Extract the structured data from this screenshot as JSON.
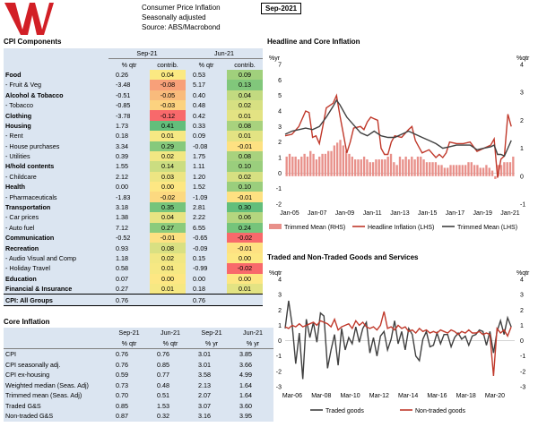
{
  "header": {
    "line1": "Consumer Price Inflation",
    "line2": "Seasonally adjusted",
    "line3": "Source: ABS/Macrobond",
    "date": "Sep-2021"
  },
  "cpi_components": {
    "title": "CPI Components",
    "col_periods": [
      "Sep-21",
      "Jun-21"
    ],
    "col_subs": [
      "% qtr",
      "contrib.",
      "% qtr",
      "contrib."
    ],
    "rows": [
      {
        "label": "Food",
        "bold": true,
        "v": [
          "0.26",
          "0.04",
          "0.53",
          "0.09"
        ],
        "c": [
          "#fbe982",
          "#a0d07c"
        ]
      },
      {
        "label": "- Fruit & Veg",
        "bold": false,
        "v": [
          "-3.48",
          "-0.08",
          "5.17",
          "0.13"
        ],
        "c": [
          "#f8a079",
          "#81c77b"
        ]
      },
      {
        "label": "Alcohol & Tobacco",
        "bold": true,
        "v": [
          "-0.51",
          "-0.05",
          "0.40",
          "0.04"
        ],
        "c": [
          "#f9bb7c",
          "#c2da80"
        ]
      },
      {
        "label": "- Tobacco",
        "bold": false,
        "v": [
          "-0.85",
          "-0.03",
          "0.48",
          "0.02"
        ],
        "c": [
          "#fcd27f",
          "#d7e082"
        ]
      },
      {
        "label": "Clothing",
        "bold": true,
        "v": [
          "-3.78",
          "-0.12",
          "0.42",
          "0.01"
        ],
        "c": [
          "#f8696b",
          "#e3e383"
        ]
      },
      {
        "label": "Housing",
        "bold": true,
        "v": [
          "1.73",
          "0.41",
          "0.33",
          "0.08"
        ],
        "c": [
          "#63be7b",
          "#a8d27e"
        ]
      },
      {
        "label": "- Rent",
        "bold": false,
        "v": [
          "0.18",
          "0.01",
          "0.09",
          "0.01"
        ],
        "c": [
          "#f6e883",
          "#e3e383"
        ]
      },
      {
        "label": "- House purchases",
        "bold": false,
        "v": [
          "3.34",
          "0.29",
          "-0.08",
          "-0.01"
        ],
        "c": [
          "#86c97c",
          "#fee182"
        ]
      },
      {
        "label": "- Utilities",
        "bold": false,
        "v": [
          "0.39",
          "0.02",
          "1.75",
          "0.08"
        ],
        "c": [
          "#f1e783",
          "#a8d27e"
        ]
      },
      {
        "label": "H/hold contents",
        "bold": true,
        "v": [
          "1.55",
          "0.14",
          "1.11",
          "0.10"
        ],
        "c": [
          "#cbdd81",
          "#9ace7d"
        ]
      },
      {
        "label": "- Childcare",
        "bold": false,
        "v": [
          "2.12",
          "0.03",
          "1.20",
          "0.02"
        ],
        "c": [
          "#ede583",
          "#d7e082"
        ]
      },
      {
        "label": "Health",
        "bold": true,
        "v": [
          "0.00",
          "0.00",
          "1.52",
          "0.10"
        ],
        "c": [
          "#fde783",
          "#9ace7d"
        ]
      },
      {
        "label": "- Pharmaceuticals",
        "bold": false,
        "v": [
          "-1.83",
          "-0.02",
          "-1.09",
          "-0.01"
        ],
        "c": [
          "#fcd980",
          "#fee182"
        ]
      },
      {
        "label": "Transportation",
        "bold": true,
        "v": [
          "3.18",
          "0.35",
          "2.81",
          "0.30"
        ],
        "c": [
          "#75c47b",
          "#63be7b"
        ]
      },
      {
        "label": "- Car prices",
        "bold": false,
        "v": [
          "1.38",
          "0.04",
          "2.22",
          "0.06"
        ],
        "c": [
          "#e8e482",
          "#b5d67f"
        ]
      },
      {
        "label": "- Auto fuel",
        "bold": false,
        "v": [
          "7.12",
          "0.27",
          "6.55",
          "0.24"
        ],
        "c": [
          "#8bcb7c",
          "#75c47b"
        ]
      },
      {
        "label": "Communication",
        "bold": true,
        "v": [
          "-0.52",
          "-0.01",
          "-0.65",
          "-0.02"
        ],
        "c": [
          "#fde182",
          "#f8696b"
        ]
      },
      {
        "label": "Recreation",
        "bold": true,
        "v": [
          "0.93",
          "0.08",
          "-0.09",
          "-0.01"
        ],
        "c": [
          "#d9e082",
          "#fee182"
        ]
      },
      {
        "label": "- Audio Visual and Comp",
        "bold": false,
        "v": [
          "1.18",
          "0.02",
          "0.15",
          "0.00"
        ],
        "c": [
          "#f1e783",
          "#fde783"
        ]
      },
      {
        "label": "- Holiday Travel",
        "bold": false,
        "v": [
          "0.58",
          "0.01",
          "-0.99",
          "-0.02"
        ],
        "c": [
          "#f6e883",
          "#f8696b"
        ]
      },
      {
        "label": "Education",
        "bold": true,
        "v": [
          "0.07",
          "0.00",
          "0.00",
          "0.00"
        ],
        "c": [
          "#fde783",
          "#fde783"
        ]
      },
      {
        "label": "Financial & Insurance",
        "bold": true,
        "v": [
          "0.27",
          "0.01",
          "0.18",
          "0.01"
        ],
        "c": [
          "#f6e883",
          "#e3e383"
        ]
      }
    ],
    "total": {
      "label": "CPI: All Groups",
      "v": [
        "0.76",
        "",
        "0.76",
        ""
      ]
    }
  },
  "core_inflation": {
    "title": "Core Inflation",
    "col_periods": [
      "Sep-21",
      "Jun-21",
      "Sep-21",
      "Jun-21"
    ],
    "col_subs": [
      "% qtr",
      "% qtr",
      "% yr",
      "% yr"
    ],
    "rows": [
      {
        "label": "CPI",
        "v": [
          "0.76",
          "0.76",
          "3.01",
          "3.85"
        ]
      },
      {
        "label": "CPI seasonally adj.",
        "v": [
          "0.76",
          "0.85",
          "3.01",
          "3.66"
        ]
      },
      {
        "label": "CPI ex-housing",
        "v": [
          "0.59",
          "0.77",
          "3.58",
          "4.99"
        ]
      },
      {
        "label": "Weighted median (Seas. Adj)",
        "v": [
          "0.73",
          "0.48",
          "2.13",
          "1.64"
        ]
      },
      {
        "label": "Trimmed mean (Seas. Adj)",
        "v": [
          "0.70",
          "0.51",
          "2.07",
          "1.64"
        ]
      },
      {
        "label": "Traded G&S",
        "v": [
          "0.85",
          "1.53",
          "3.07",
          "3.60"
        ]
      },
      {
        "label": "Non-traded G&S",
        "v": [
          "0.87",
          "0.32",
          "3.16",
          "3.95"
        ]
      }
    ]
  },
  "chart_data": [
    {
      "type": "line",
      "title": "Headline and Core Inflation",
      "left_axis_label": "%yr",
      "right_axis_label": "%qtr",
      "ylim_left": [
        -2,
        7
      ],
      "ylim_right": [
        -1,
        4
      ],
      "yticks_left": [
        "7",
        "6",
        "5",
        "4",
        "3",
        "2",
        "1",
        "0",
        "-1",
        "-2"
      ],
      "yticks_right": [
        "4",
        "3",
        "2",
        "1",
        "0",
        "-1"
      ],
      "xtick_labels": [
        "Jan-05",
        "Jan-07",
        "Jan-09",
        "Jan-11",
        "Jan-13",
        "Jan-15",
        "Jan-17",
        "Jan-19",
        "Jan-21"
      ],
      "x_start": 2005.0,
      "x_end": 2021.75,
      "series": [
        {
          "name": "Trimmed Mean (RHS)",
          "kind": "bar",
          "color": "#e8908a",
          "values": [
            0.7,
            0.8,
            0.7,
            0.7,
            0.6,
            0.7,
            0.8,
            0.7,
            0.9,
            0.8,
            0.6,
            0.7,
            0.8,
            0.8,
            0.9,
            0.9,
            1.1,
            1.2,
            1.3,
            1.1,
            0.9,
            0.8,
            0.7,
            0.6,
            0.6,
            0.6,
            0.7,
            0.6,
            0.5,
            0.5,
            0.6,
            0.6,
            0.6,
            0.6,
            0.7,
            0.8,
            0.5,
            0.4,
            0.7,
            0.6,
            0.7,
            0.6,
            0.7,
            0.6,
            0.7,
            0.7,
            0.6,
            0.5,
            0.5,
            0.5,
            0.5,
            0.4,
            0.4,
            0.3,
            0.3,
            0.4,
            0.4,
            0.4,
            0.4,
            0.4,
            0.4,
            0.5,
            0.5,
            0.4,
            0.4,
            0.3,
            0.3,
            0.4,
            0.3,
            0.2,
            -0.1,
            0.4,
            0.4,
            0.5,
            0.5,
            0.5,
            0.7
          ]
        },
        {
          "name": "Headline Inflation (LHS)",
          "kind": "line",
          "color": "#c0392b",
          "x": [
            2005.0,
            2005.5,
            2006.0,
            2006.5,
            2006.75,
            2007.0,
            2007.25,
            2007.5,
            2007.75,
            2008.0,
            2008.5,
            2008.75,
            2009.0,
            2009.25,
            2009.5,
            2009.75,
            2010.0,
            2010.5,
            2010.75,
            2011.0,
            2011.25,
            2011.5,
            2011.75,
            2012.0,
            2012.25,
            2012.5,
            2012.75,
            2013.0,
            2013.5,
            2014.0,
            2014.25,
            2014.5,
            2014.75,
            2015.0,
            2015.5,
            2016.0,
            2016.25,
            2016.5,
            2016.75,
            2017.0,
            2017.5,
            2018.0,
            2018.5,
            2019.0,
            2019.5,
            2020.0,
            2020.25,
            2020.5,
            2020.75,
            2021.0,
            2021.25,
            2021.5
          ],
          "values": [
            2.4,
            2.5,
            3.0,
            4.0,
            3.9,
            2.3,
            2.4,
            1.9,
            3.0,
            4.2,
            4.5,
            5.0,
            3.7,
            2.5,
            1.3,
            2.0,
            2.9,
            3.0,
            2.8,
            3.3,
            3.6,
            3.5,
            3.4,
            1.6,
            1.2,
            1.2,
            2.0,
            2.4,
            2.3,
            2.8,
            3.0,
            2.1,
            1.7,
            1.3,
            1.5,
            1.0,
            1.2,
            1.0,
            1.3,
            2.0,
            1.9,
            1.9,
            2.0,
            1.4,
            1.6,
            1.8,
            2.2,
            -0.3,
            0.9,
            1.1,
            3.8,
            3.0
          ]
        },
        {
          "name": "Trimmed Mean (LHS)",
          "kind": "line",
          "color": "#404040",
          "x": [
            2005.0,
            2005.5,
            2006.0,
            2006.5,
            2007.0,
            2007.5,
            2008.0,
            2008.5,
            2008.75,
            2009.0,
            2009.5,
            2010.0,
            2010.5,
            2011.0,
            2011.5,
            2012.0,
            2012.5,
            2013.0,
            2013.5,
            2014.0,
            2014.5,
            2015.0,
            2015.5,
            2016.0,
            2016.5,
            2017.0,
            2017.5,
            2018.0,
            2018.5,
            2019.0,
            2019.5,
            2020.0,
            2020.25,
            2020.5,
            2020.75,
            2021.0,
            2021.25,
            2021.5
          ],
          "values": [
            2.5,
            2.7,
            2.8,
            2.9,
            2.8,
            3.0,
            3.6,
            4.3,
            4.7,
            4.4,
            3.6,
            3.1,
            2.6,
            2.4,
            2.7,
            2.4,
            2.3,
            2.3,
            2.5,
            2.7,
            2.5,
            2.3,
            2.1,
            1.9,
            1.6,
            1.7,
            1.8,
            1.8,
            1.8,
            1.5,
            1.6,
            1.7,
            1.8,
            1.2,
            1.2,
            1.1,
            1.6,
            2.1
          ]
        }
      ]
    },
    {
      "type": "line",
      "title": "Traded and Non-Traded Goods and Services",
      "left_axis_label": "%qtr",
      "right_axis_label": "%qtr",
      "ylim": [
        -3,
        4
      ],
      "yticks": [
        "4",
        "3",
        "2",
        "1",
        "0",
        "-1",
        "-2",
        "-3"
      ],
      "xtick_labels": [
        "Mar-06",
        "Mar-08",
        "Mar-10",
        "Mar-12",
        "Mar-14",
        "Mar-16",
        "Mar-18",
        "Mar-20"
      ],
      "x_start": 2005.5,
      "x_end": 2021.75,
      "series": [
        {
          "name": "Traded goods",
          "color": "#404040",
          "x": [
            2005.5,
            2005.75,
            2006.0,
            2006.25,
            2006.5,
            2006.75,
            2007.0,
            2007.25,
            2007.5,
            2007.75,
            2008.0,
            2008.25,
            2008.5,
            2008.75,
            2009.0,
            2009.25,
            2009.5,
            2009.75,
            2010.0,
            2010.25,
            2010.5,
            2010.75,
            2011.0,
            2011.25,
            2011.5,
            2011.75,
            2012.0,
            2012.25,
            2012.5,
            2012.75,
            2013.0,
            2013.25,
            2013.5,
            2013.75,
            2014.0,
            2014.25,
            2014.5,
            2014.75,
            2015.0,
            2015.25,
            2015.5,
            2015.75,
            2016.0,
            2016.25,
            2016.5,
            2016.75,
            2017.0,
            2017.25,
            2017.5,
            2017.75,
            2018.0,
            2018.25,
            2018.5,
            2018.75,
            2019.0,
            2019.25,
            2019.5,
            2019.75,
            2020.0,
            2020.25,
            2020.5,
            2020.75,
            2021.0,
            2021.25,
            2021.5
          ],
          "values": [
            0.8,
            2.6,
            1.0,
            -1.5,
            0.5,
            -2.5,
            1.4,
            0.2,
            1.2,
            -0.1,
            1.8,
            1.6,
            -1.8,
            -0.6,
            0.4,
            -1.6,
            0.8,
            -0.6,
            0.2,
            -0.2,
            0.9,
            -0.1,
            0.8,
            1.2,
            -0.8,
            0.2,
            -1.0,
            0.3,
            0.6,
            -0.6,
            0.1,
            1.3,
            -0.2,
            0.6,
            -0.6,
            0.8,
            0.4,
            -1.0,
            -1.3,
            0.1,
            0.6,
            -0.4,
            -0.3,
            0.5,
            -0.2,
            0.4,
            0.4,
            -0.4,
            0.2,
            0.5,
            0.1,
            0.3,
            -0.3,
            0.3,
            0.4,
            0.7,
            0.6,
            -0.3,
            0.6,
            -0.8,
            0.6,
            1.3,
            0.4,
            1.5,
            0.9
          ]
        },
        {
          "name": "Non-traded goods",
          "color": "#c0392b",
          "x": [
            2005.5,
            2005.75,
            2006.0,
            2006.25,
            2006.5,
            2006.75,
            2007.0,
            2007.25,
            2007.5,
            2007.75,
            2008.0,
            2008.25,
            2008.5,
            2008.75,
            2009.0,
            2009.25,
            2009.5,
            2009.75,
            2010.0,
            2010.25,
            2010.5,
            2010.75,
            2011.0,
            2011.25,
            2011.5,
            2011.75,
            2012.0,
            2012.25,
            2012.5,
            2012.75,
            2013.0,
            2013.25,
            2013.5,
            2013.75,
            2014.0,
            2014.25,
            2014.5,
            2014.75,
            2015.0,
            2015.25,
            2015.5,
            2015.75,
            2016.0,
            2016.25,
            2016.5,
            2016.75,
            2017.0,
            2017.25,
            2017.5,
            2017.75,
            2018.0,
            2018.25,
            2018.5,
            2018.75,
            2019.0,
            2019.25,
            2019.5,
            2019.75,
            2020.0,
            2020.25,
            2020.5,
            2020.75,
            2021.0,
            2021.25,
            2021.5
          ],
          "values": [
            0.9,
            0.8,
            1.0,
            0.9,
            1.1,
            0.9,
            1.0,
            1.1,
            1.2,
            1.0,
            1.3,
            1.2,
            1.1,
            0.9,
            1.4,
            0.7,
            0.9,
            1.0,
            1.1,
            0.8,
            1.3,
            1.0,
            1.2,
            0.9,
            0.8,
            0.9,
            0.7,
            1.0,
            1.9,
            0.8,
            0.9,
            0.7,
            1.0,
            0.8,
            0.9,
            0.6,
            0.7,
            0.5,
            0.8,
            0.6,
            0.7,
            0.5,
            0.6,
            0.5,
            0.7,
            0.6,
            0.5,
            0.7,
            0.6,
            0.4,
            0.6,
            0.5,
            0.7,
            0.5,
            0.5,
            0.6,
            0.4,
            0.5,
            0.4,
            -2.3,
            0.8,
            0.5,
            0.7,
            0.3,
            0.9
          ]
        }
      ]
    }
  ]
}
